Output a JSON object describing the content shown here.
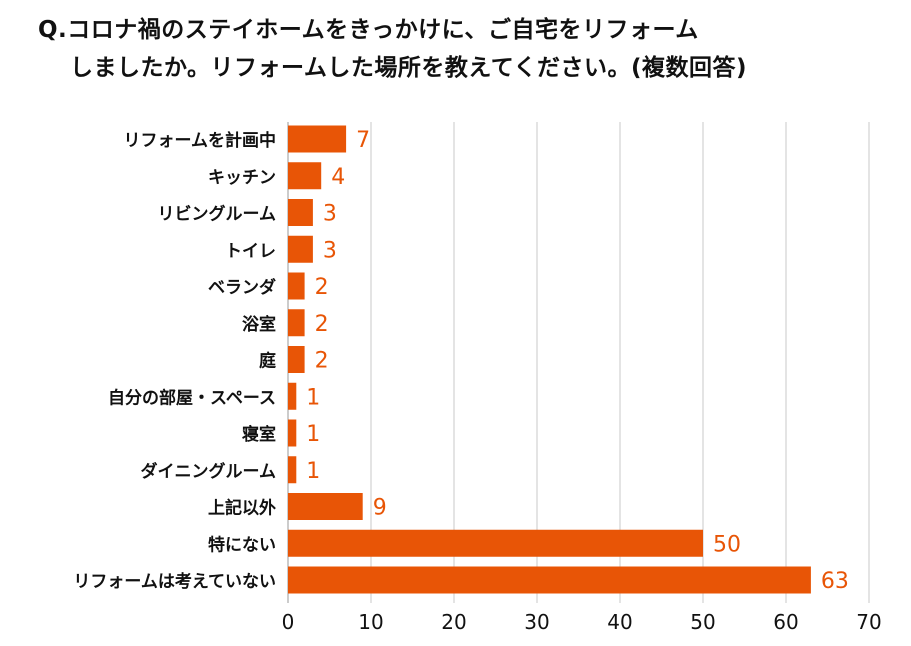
{
  "chart_data": {
    "type": "bar",
    "orientation": "horizontal",
    "title_lines": [
      "Q.コロナ禍のステイホームをきっかけに、ご自宅をリフォーム",
      "しましたか。リフォームした場所を教えてください。(複数回答)"
    ],
    "categories": [
      "リフォームを計画中",
      "キッチン",
      "リビングルーム",
      "トイレ",
      "ベランダ",
      "浴室",
      "庭",
      "自分の部屋・スペース",
      "寝室",
      "ダイニングルーム",
      "上記以外",
      "特にない",
      "リフォームは考えていない"
    ],
    "values": [
      7,
      4,
      3,
      3,
      2,
      2,
      2,
      1,
      1,
      1,
      9,
      50,
      63
    ],
    "xlim": [
      0,
      70
    ],
    "xticks": [
      "0",
      "10",
      "20",
      "30",
      "40",
      "50",
      "60",
      "70"
    ],
    "grid": true,
    "bar_color": "#E85506",
    "label_color": "#E85506",
    "xlabel": "",
    "ylabel": ""
  }
}
